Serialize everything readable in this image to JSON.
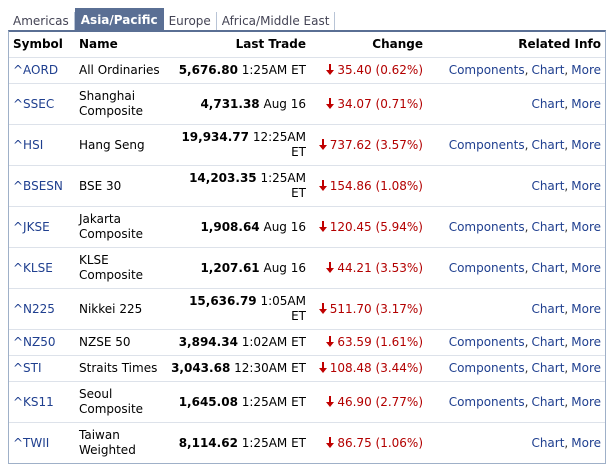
{
  "tabs": [
    "Americas",
    "Asia/Pacific",
    "Europe",
    "Africa/Middle East"
  ],
  "active_tab": 1,
  "table": {
    "columns": [
      "Symbol",
      "Name",
      "Last Trade",
      "Change",
      "Related Info"
    ],
    "separator": ",",
    "rows": [
      {
        "symbol": "^AORD",
        "name": "All Ordinaries",
        "price": "5,676.80",
        "time": "1:25AM ET",
        "change": "35.40 (0.62%)",
        "related": [
          "Components",
          "Chart",
          "More"
        ]
      },
      {
        "symbol": "^SSEC",
        "name": "Shanghai Composite",
        "price": "4,731.38",
        "time": "Aug 16",
        "change": "34.07 (0.71%)",
        "related": [
          "Chart",
          "More"
        ]
      },
      {
        "symbol": "^HSI",
        "name": "Hang Seng",
        "price": "19,934.77",
        "time": "12:25AM ET",
        "change": "737.62 (3.57%)",
        "related": [
          "Components",
          "Chart",
          "More"
        ]
      },
      {
        "symbol": "^BSESN",
        "name": "BSE 30",
        "price": "14,203.35",
        "time": "1:25AM ET",
        "change": "154.86 (1.08%)",
        "related": [
          "Chart",
          "More"
        ]
      },
      {
        "symbol": "^JKSE",
        "name": "Jakarta Composite",
        "price": "1,908.64",
        "time": "Aug 16",
        "change": "120.45 (5.94%)",
        "related": [
          "Components",
          "Chart",
          "More"
        ]
      },
      {
        "symbol": "^KLSE",
        "name": "KLSE Composite",
        "price": "1,207.61",
        "time": "Aug 16",
        "change": "44.21 (3.53%)",
        "related": [
          "Components",
          "Chart",
          "More"
        ]
      },
      {
        "symbol": "^N225",
        "name": "Nikkei 225",
        "price": "15,636.79",
        "time": "1:05AM ET",
        "change": "511.70 (3.17%)",
        "related": [
          "Chart",
          "More"
        ]
      },
      {
        "symbol": "^NZ50",
        "name": "NZSE 50",
        "price": "3,894.34",
        "time": "1:02AM ET",
        "change": "63.59 (1.61%)",
        "related": [
          "Components",
          "Chart",
          "More"
        ]
      },
      {
        "symbol": "^STI",
        "name": "Straits Times",
        "price": "3,043.68",
        "time": "12:30AM ET",
        "change": "108.48 (3.44%)",
        "related": [
          "Components",
          "Chart",
          "More"
        ]
      },
      {
        "symbol": "^KS11",
        "name": "Seoul Composite",
        "price": "1,645.08",
        "time": "1:25AM ET",
        "change": "46.90 (2.77%)",
        "related": [
          "Components",
          "Chart",
          "More"
        ]
      },
      {
        "symbol": "^TWII",
        "name": "Taiwan Weighted",
        "price": "8,114.62",
        "time": "1:25AM ET",
        "change": "86.75 (1.06%)",
        "related": [
          "Chart",
          "More"
        ]
      }
    ]
  }
}
